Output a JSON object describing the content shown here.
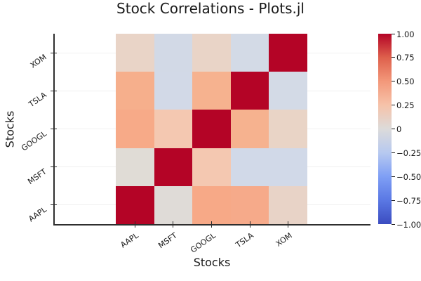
{
  "chart_data": {
    "type": "heatmap",
    "title": "Stock Correlations - Plots.jl",
    "xlabel": "Stocks",
    "ylabel": "Stocks",
    "x_categories": [
      "AAPL",
      "MSFT",
      "GOOGL",
      "TSLA",
      "XOM"
    ],
    "y_categories_bottom_to_top": [
      "AAPL",
      "MSFT",
      "GOOGL",
      "TSLA",
      "XOM"
    ],
    "grid": true,
    "tick_rotation_deg": 35,
    "rows_top_to_bottom": [
      {
        "stock": "XOM",
        "values": [
          0.18,
          -0.12,
          0.18,
          -0.1,
          1.0
        ],
        "cell_colors": [
          "#e9d4c7",
          "#d2d9e6",
          "#e9d4c7",
          "#d3dae6",
          "#b40426"
        ]
      },
      {
        "stock": "TSLA",
        "values": [
          0.42,
          -0.12,
          0.4,
          1.0,
          -0.1
        ],
        "cell_colors": [
          "#f6af8c",
          "#d2d9e7",
          "#f6b28f",
          "#b40426",
          "#d3dae6"
        ]
      },
      {
        "stock": "GOOGL",
        "values": [
          0.45,
          0.3,
          1.0,
          0.4,
          0.18
        ],
        "cell_colors": [
          "#f7aa88",
          "#f4c8b1",
          "#b40426",
          "#f6b28f",
          "#e9d4c6"
        ]
      },
      {
        "stock": "MSFT",
        "values": [
          0.05,
          1.0,
          0.3,
          -0.12,
          -0.12
        ],
        "cell_colors": [
          "#e0dcd6",
          "#b40426",
          "#f4c8b1",
          "#d1d9e8",
          "#d1d9e8"
        ]
      },
      {
        "stock": "AAPL",
        "values": [
          1.0,
          0.05,
          0.45,
          0.42,
          0.18
        ],
        "cell_colors": [
          "#b40426",
          "#dfdbd7",
          "#f7a987",
          "#f6aa8a",
          "#e8d3c7"
        ]
      }
    ],
    "colorbar": {
      "min": -1,
      "max": 1,
      "colormap": "coolwarm",
      "tick_labels": [
        "1.00",
        "0.75",
        "0.50",
        "0.25",
        "0",
        "−0.25",
        "−0.50",
        "−0.75",
        "−1.00"
      ],
      "gradient_top_to_bottom": [
        "#b40426",
        "#de604c",
        "#f3987a",
        "#f6c2a9",
        "#dcdbda",
        "#b7c9f0",
        "#7f9ff5",
        "#5a78e4",
        "#3b4cc0"
      ]
    },
    "styles": {
      "accent_red": "#b40426",
      "spine_color": "#2e2e2e",
      "gridline_color": "#f0f0f0",
      "text_color": "#1a1a1a",
      "background": "#ffffff"
    }
  }
}
